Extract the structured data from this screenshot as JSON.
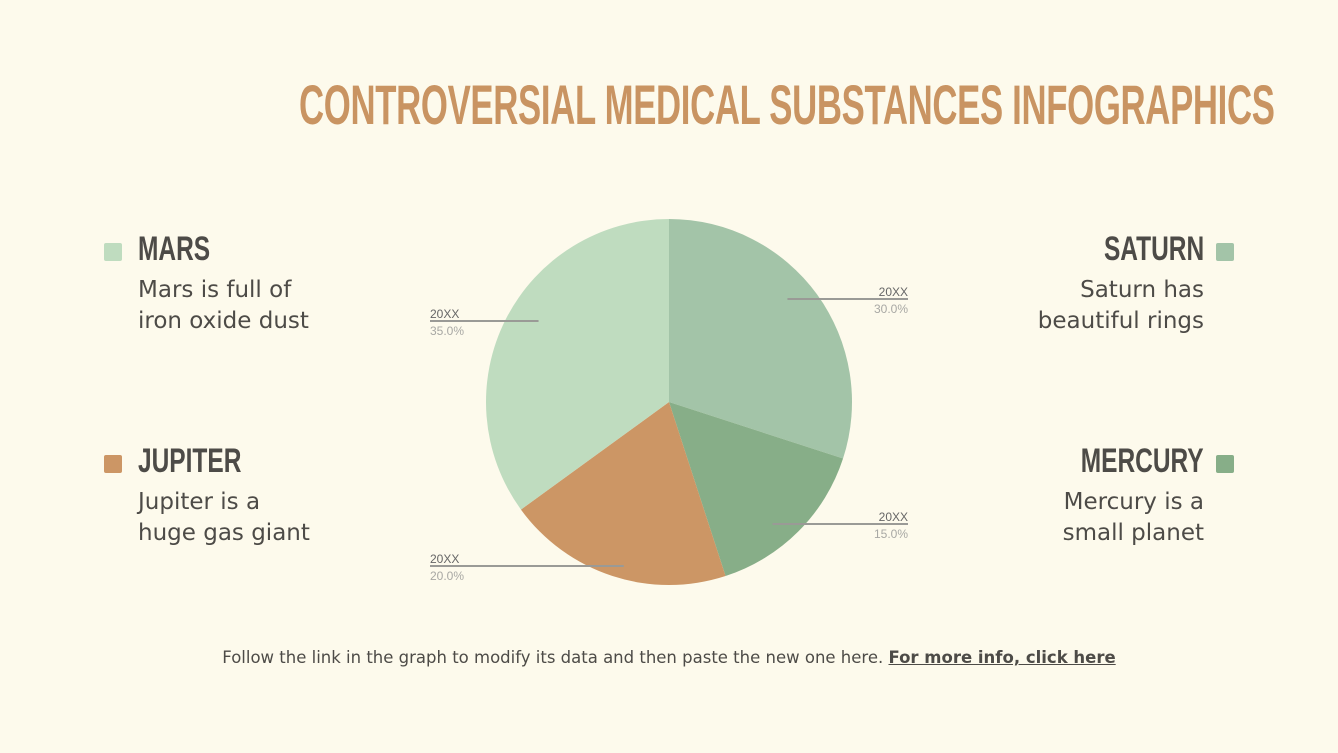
{
  "title": "CONTROVERSIAL MEDICAL SUBSTANCES INFOGRAPHICS",
  "legend": [
    {
      "name": "MARS",
      "text": "Mars is full of iron oxide dust",
      "line1": "Mars is full of",
      "line2": "iron oxide dust",
      "color": "#bfdcbf"
    },
    {
      "name": "JUPITER",
      "text": "Jupiter is a huge gas giant",
      "line1": "Jupiter is a",
      "line2": "huge gas giant",
      "color": "#cc9665"
    },
    {
      "name": "SATURN",
      "text": "Saturn has beautiful rings",
      "line1": "Saturn has",
      "line2": "beautiful rings",
      "color": "#a3c4a8"
    },
    {
      "name": "MERCURY",
      "text": "Mercury is a small planet",
      "line1": "Mercury is a",
      "line2": "small planet",
      "color": "#87ae88"
    }
  ],
  "footer": {
    "text": "Follow the link in the graph to modify its data and then paste the new one here.",
    "link": "For more info, click here"
  },
  "chart_data": {
    "type": "pie",
    "start": "top",
    "direction": "clockwise",
    "slices": [
      {
        "label": "20XX",
        "value": 30.0,
        "display": "30.0%",
        "color": "#a3c4a8"
      },
      {
        "label": "20XX",
        "value": 15.0,
        "display": "15.0%",
        "color": "#87ae88"
      },
      {
        "label": "20XX",
        "value": 20.0,
        "display": "20.0%",
        "color": "#cc9665"
      },
      {
        "label": "20XX",
        "value": 35.0,
        "display": "35.0%",
        "color": "#bfdcbf"
      }
    ]
  }
}
